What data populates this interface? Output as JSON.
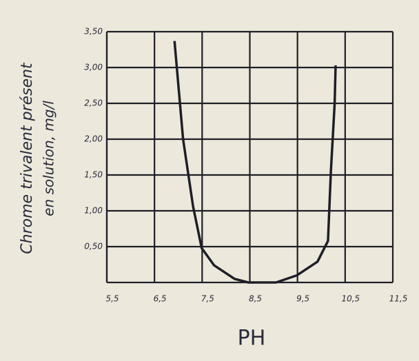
{
  "chart_data": {
    "type": "line",
    "y_label_lines": [
      "Chrome trivalent présent",
      "en solution, mg/l"
    ],
    "x_label": "PH",
    "x": [
      6.92,
      7.1,
      7.31,
      7.49,
      7.75,
      8.18,
      8.47,
      9.05,
      9.49,
      9.92,
      10.14,
      10.2,
      10.28,
      10.3
    ],
    "series": [
      {
        "color": "#1e1e26",
        "values": [
          3.37,
          2.0,
          1.06,
          0.48,
          0.24,
          0.05,
          0,
          0,
          0.1,
          0.29,
          0.58,
          1.54,
          2.5,
          3.03
        ]
      }
    ],
    "xlim": [
      5.5,
      11.5
    ],
    "xticks": [
      {
        "value": 5.5,
        "label": "5,5"
      },
      {
        "value": 6.5,
        "label": "6,5"
      },
      {
        "value": 7.5,
        "label": "7,5"
      },
      {
        "value": 8.5,
        "label": "8,5"
      },
      {
        "value": 9.5,
        "label": "9,5"
      },
      {
        "value": 10.5,
        "label": "10,5"
      },
      {
        "value": 11.5,
        "label": "11,5"
      }
    ],
    "ylim": [
      0,
      3.5
    ],
    "yticks": [
      {
        "value": 0.5,
        "label": "0,50"
      },
      {
        "value": 1,
        "label": "1,00"
      },
      {
        "value": 1.5,
        "label": "1,50"
      },
      {
        "value": 2,
        "label": "2,00"
      },
      {
        "value": 2.5,
        "label": "2,50"
      },
      {
        "value": 3,
        "label": "3,00"
      },
      {
        "value": 3.5,
        "label": "3,50"
      }
    ],
    "grid": true
  }
}
